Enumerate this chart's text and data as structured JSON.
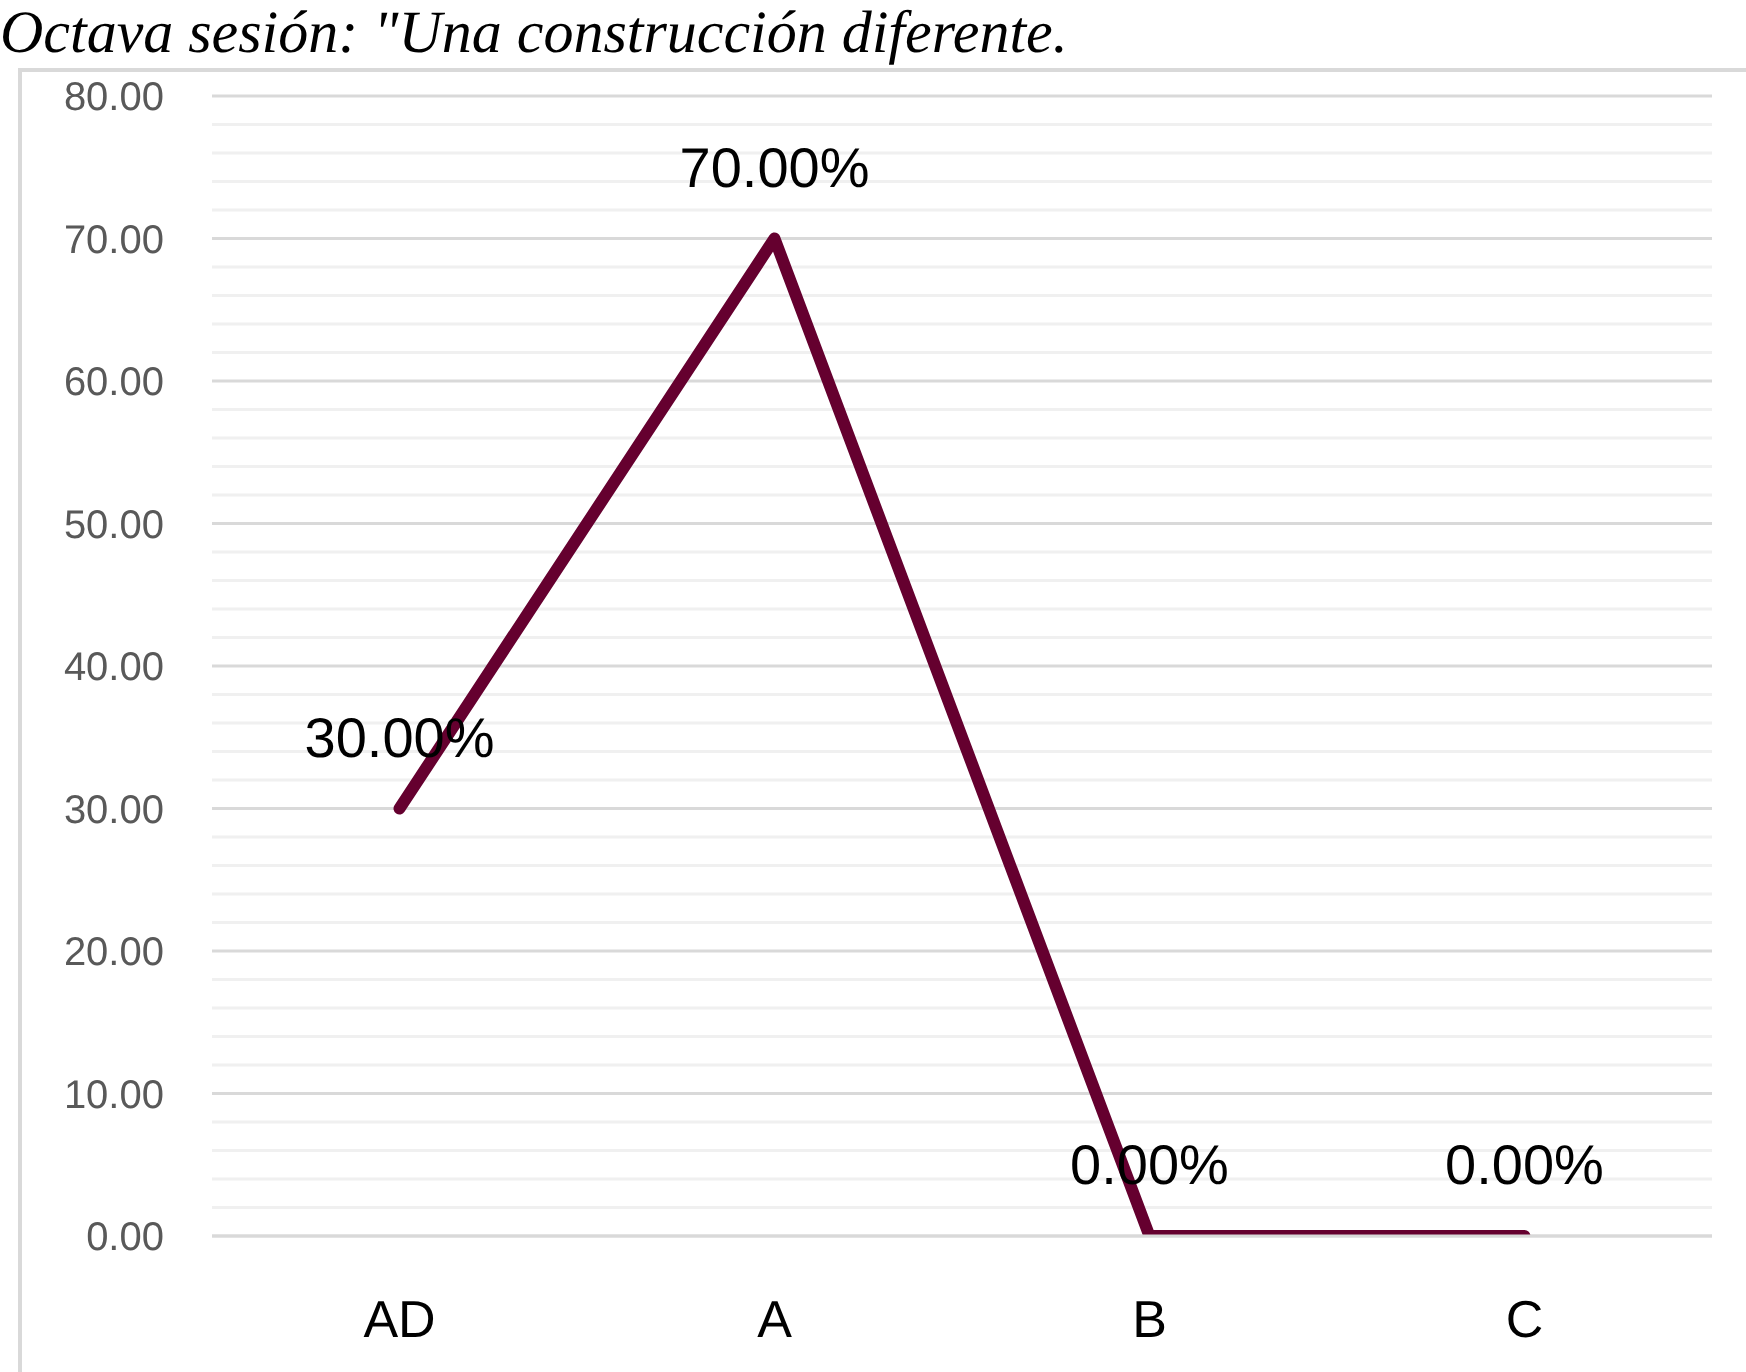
{
  "chart_data": {
    "type": "line",
    "title": "Octava sesión: \"Una construcción diferente.",
    "categories": [
      "AD",
      "A",
      "B",
      "C"
    ],
    "series": [
      {
        "color": "#65002f",
        "values": [
          30,
          70,
          0,
          0
        ],
        "value_labels": [
          "30.00%",
          "70.00%",
          "0.00%",
          "0.00%"
        ]
      }
    ],
    "ylim": [
      0,
      80
    ],
    "yticks": [
      {
        "value": 0,
        "label": "0.00"
      },
      {
        "value": 2,
        "label": null
      },
      {
        "value": 4,
        "label": null
      },
      {
        "value": 6,
        "label": null
      },
      {
        "value": 8,
        "label": null
      },
      {
        "value": 10,
        "label": "10.00"
      },
      {
        "value": 12,
        "label": null
      },
      {
        "value": 14,
        "label": null
      },
      {
        "value": 16,
        "label": null
      },
      {
        "value": 18,
        "label": null
      },
      {
        "value": 20,
        "label": "20.00"
      },
      {
        "value": 22,
        "label": null
      },
      {
        "value": 24,
        "label": null
      },
      {
        "value": 26,
        "label": null
      },
      {
        "value": 28,
        "label": null
      },
      {
        "value": 30,
        "label": "30.00"
      },
      {
        "value": 32,
        "label": null
      },
      {
        "value": 34,
        "label": null
      },
      {
        "value": 36,
        "label": null
      },
      {
        "value": 38,
        "label": null
      },
      {
        "value": 40,
        "label": "40.00"
      },
      {
        "value": 42,
        "label": null
      },
      {
        "value": 44,
        "label": null
      },
      {
        "value": 46,
        "label": null
      },
      {
        "value": 48,
        "label": null
      },
      {
        "value": 50,
        "label": "50.00"
      },
      {
        "value": 52,
        "label": null
      },
      {
        "value": 54,
        "label": null
      },
      {
        "value": 56,
        "label": null
      },
      {
        "value": 58,
        "label": null
      },
      {
        "value": 60,
        "label": "60.00"
      },
      {
        "value": 62,
        "label": null
      },
      {
        "value": 64,
        "label": null
      },
      {
        "value": 66,
        "label": null
      },
      {
        "value": 68,
        "label": null
      },
      {
        "value": 70,
        "label": "70.00"
      },
      {
        "value": 72,
        "label": null
      },
      {
        "value": 74,
        "label": null
      },
      {
        "value": 76,
        "label": null
      },
      {
        "value": 78,
        "label": null
      },
      {
        "value": 80,
        "label": "80.00"
      }
    ],
    "grid": "y",
    "line_style": "solid"
  }
}
